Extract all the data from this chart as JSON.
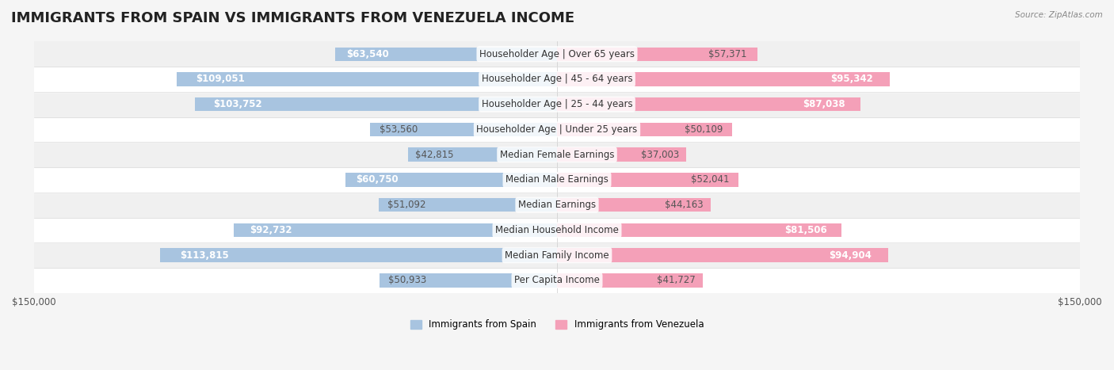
{
  "title": "IMMIGRANTS FROM SPAIN VS IMMIGRANTS FROM VENEZUELA INCOME",
  "source": "Source: ZipAtlas.com",
  "categories": [
    "Per Capita Income",
    "Median Family Income",
    "Median Household Income",
    "Median Earnings",
    "Median Male Earnings",
    "Median Female Earnings",
    "Householder Age | Under 25 years",
    "Householder Age | 25 - 44 years",
    "Householder Age | 45 - 64 years",
    "Householder Age | Over 65 years"
  ],
  "spain_values": [
    50933,
    113815,
    92732,
    51092,
    60750,
    42815,
    53560,
    103752,
    109051,
    63540
  ],
  "venezuela_values": [
    41727,
    94904,
    81506,
    44163,
    52041,
    37003,
    50109,
    87038,
    95342,
    57371
  ],
  "spain_labels": [
    "$50,933",
    "$113,815",
    "$92,732",
    "$51,092",
    "$60,750",
    "$42,815",
    "$53,560",
    "$103,752",
    "$109,051",
    "$63,540"
  ],
  "venezuela_labels": [
    "$41,727",
    "$94,904",
    "$81,506",
    "$44,163",
    "$52,041",
    "$37,003",
    "$50,109",
    "$87,038",
    "$95,342",
    "$57,371"
  ],
  "spain_color": "#a8c4e0",
  "venezuela_color": "#f4a0b8",
  "spain_label_color_inside": "#ffffff",
  "spain_label_color_outside": "#555555",
  "venezuela_label_color_inside": "#ffffff",
  "venezuela_label_color_outside": "#555555",
  "spain_inside_threshold": 60000,
  "venezuela_inside_threshold": 60000,
  "max_value": 150000,
  "bar_height": 0.55,
  "background_color": "#f5f5f5",
  "row_bg_color_even": "#ffffff",
  "row_bg_color_odd": "#f0f0f0",
  "legend_spain": "Immigrants from Spain",
  "legend_venezuela": "Immigrants from Venezuela",
  "title_fontsize": 13,
  "label_fontsize": 8.5,
  "category_fontsize": 8.5,
  "axis_label_fontsize": 8.5
}
